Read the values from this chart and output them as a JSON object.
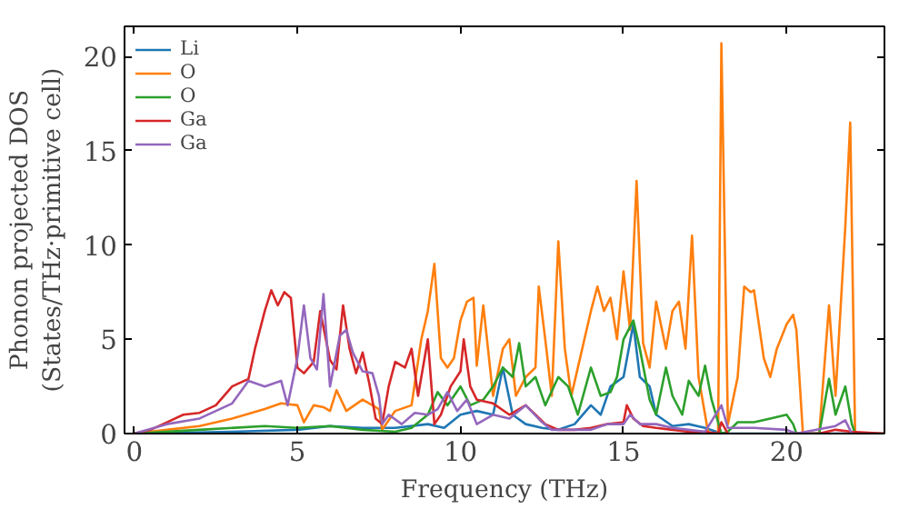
{
  "chart_data": {
    "type": "line",
    "xlabel": "Frequency (THz)",
    "ylabel": "Phonon projected DOS\n(States/THz·primitive cell)",
    "xlim": [
      -0.3,
      23
    ],
    "ylim": [
      0,
      21.6
    ],
    "xticks": [
      0,
      5,
      10,
      15,
      20
    ],
    "yticks": [
      0,
      5,
      10,
      15,
      20
    ],
    "legend": "top left",
    "grid": false,
    "series": [
      {
        "name": "Li",
        "color": "#1f77b4",
        "x": [
          0,
          3,
          5,
          6,
          7,
          8,
          9,
          9.5,
          10,
          10.5,
          11,
          11.3,
          11.6,
          12,
          12.5,
          13,
          13.5,
          14,
          14.3,
          14.6,
          15,
          15.3,
          15.5,
          15.8,
          16,
          16.5,
          17,
          17.5,
          18,
          20,
          22
        ],
        "values": [
          0,
          0.1,
          0.2,
          0.4,
          0.3,
          0.3,
          0.5,
          0.3,
          1.0,
          1.2,
          1.0,
          3.5,
          1.0,
          0.5,
          0.3,
          0.2,
          0.5,
          1.5,
          1.0,
          2.5,
          3.0,
          5.8,
          3.0,
          2.5,
          1.0,
          0.4,
          0.5,
          0.3,
          0,
          0,
          0
        ]
      },
      {
        "name": "O",
        "color": "#ff7f0e",
        "x": [
          0,
          1,
          2,
          3,
          4,
          4.5,
          5,
          5.2,
          5.5,
          5.8,
          6,
          6.2,
          6.5,
          7,
          7.5,
          7.6,
          8,
          8.5,
          8.8,
          9,
          9.2,
          9.4,
          9.6,
          9.8,
          10,
          10.2,
          10.4,
          10.5,
          10.7,
          11,
          11.3,
          11.5,
          11.7,
          12,
          12.3,
          12.4,
          12.6,
          12.8,
          13,
          13.2,
          13.4,
          13.6,
          14,
          14.2,
          14.4,
          14.6,
          14.8,
          15,
          15.2,
          15.4,
          15.6,
          15.8,
          16,
          16.3,
          16.5,
          16.7,
          16.9,
          17.1,
          17.3,
          17.6,
          17.9,
          18,
          18.2,
          18.5,
          18.7,
          18.9,
          19,
          19.3,
          19.5,
          19.7,
          20,
          20.2,
          20.3,
          20.5,
          21,
          21.3,
          21.5,
          21.8,
          21.95,
          22.1,
          23
        ],
        "values": [
          0,
          0.2,
          0.4,
          0.8,
          1.3,
          1.6,
          1.5,
          0.6,
          1.5,
          1.4,
          1.2,
          2.3,
          1.2,
          1.8,
          1.3,
          0.2,
          1.2,
          1.5,
          5.0,
          6.5,
          9.0,
          4.0,
          3.5,
          4.0,
          6.0,
          7.0,
          7.2,
          3.6,
          6.8,
          2.0,
          4.5,
          5.0,
          2.0,
          3.0,
          3.5,
          7.8,
          5.0,
          2.0,
          10.2,
          4.5,
          2.0,
          3.5,
          6.5,
          7.8,
          6.5,
          7.2,
          5.0,
          8.6,
          5.5,
          13.4,
          4.8,
          3.5,
          7.0,
          4.5,
          6.5,
          7.0,
          4.5,
          10.5,
          3.0,
          0,
          0,
          20.7,
          0.5,
          3.0,
          7.8,
          7.5,
          7.6,
          4.0,
          3.0,
          4.5,
          5.8,
          6.3,
          5.5,
          0,
          0,
          6.8,
          2.0,
          11,
          16.5,
          0,
          0
        ]
      },
      {
        "name": "O",
        "color": "#2ca02c",
        "x": [
          0,
          2,
          4,
          5,
          6,
          7,
          8,
          8.5,
          9,
          9.3,
          9.6,
          10,
          10.3,
          10.7,
          11,
          11.3,
          11.6,
          11.8,
          12,
          12.3,
          12.6,
          13,
          13.3,
          13.6,
          14,
          14.3,
          14.6,
          14.8,
          15,
          15.3,
          15.5,
          15.8,
          16,
          16.3,
          16.5,
          16.8,
          17,
          17.3,
          17.5,
          17.7,
          18,
          18.2,
          18.5,
          19,
          19.5,
          20,
          20.2,
          20.3,
          21,
          21.3,
          21.5,
          21.8,
          22,
          22.1,
          23
        ],
        "values": [
          0,
          0.2,
          0.4,
          0.3,
          0.4,
          0.2,
          0.1,
          0.3,
          1.0,
          2.2,
          1.5,
          2.5,
          1.5,
          1.8,
          2.5,
          3.5,
          3.0,
          4.8,
          2.5,
          3.0,
          1.5,
          3.0,
          2.5,
          1.0,
          3.5,
          2.0,
          2.2,
          3.0,
          5.0,
          6.0,
          4.5,
          1.8,
          1.0,
          3.5,
          2.0,
          1.0,
          2.8,
          2.0,
          3.6,
          1.8,
          0,
          0.1,
          0.6,
          0.6,
          0.8,
          1.0,
          0.5,
          0,
          0,
          2.9,
          1.0,
          2.5,
          0.5,
          0,
          0
        ]
      },
      {
        "name": "Ga",
        "color": "#d62728",
        "x": [
          0,
          0.5,
          1,
          1.5,
          2,
          2.5,
          3,
          3.5,
          3.7,
          4,
          4.2,
          4.4,
          4.6,
          4.8,
          5,
          5.2,
          5.5,
          5.7,
          6,
          6.2,
          6.4,
          6.6,
          6.8,
          7,
          7.2,
          7.4,
          7.6,
          7.8,
          8,
          8.3,
          8.5,
          8.7,
          9,
          9.2,
          9.4,
          9.7,
          10,
          10.1,
          10.3,
          10.5,
          11,
          11.5,
          12,
          12.3,
          12.6,
          13,
          13.5,
          14,
          14.5,
          15,
          15.1,
          15.3,
          15.6,
          16,
          16.5,
          17,
          17.5,
          17.9,
          18,
          18.2,
          19,
          20,
          21,
          21.5,
          22,
          23
        ],
        "values": [
          0,
          0.2,
          0.6,
          1.0,
          1.1,
          1.5,
          2.5,
          2.9,
          4.5,
          6.5,
          7.6,
          6.8,
          7.5,
          7.2,
          3.5,
          3.2,
          3.8,
          6.5,
          3.9,
          3.4,
          6.8,
          4.5,
          3.2,
          4.3,
          2.7,
          0.8,
          0.5,
          2.5,
          3.8,
          3.5,
          4.5,
          2.0,
          5.0,
          0.5,
          1.0,
          2.5,
          3.3,
          5.0,
          2.5,
          1.8,
          1.6,
          1.0,
          1.5,
          1.0,
          0.5,
          0.2,
          0.2,
          0.3,
          0.5,
          0.6,
          1.5,
          0.8,
          0.4,
          0.3,
          0.2,
          0.1,
          0.1,
          0,
          0.6,
          0,
          null,
          0,
          0,
          0.2,
          0.1,
          0
        ]
      },
      {
        "name": "Ga",
        "color": "#9467bd",
        "x": [
          0,
          1,
          2,
          3,
          3.5,
          4,
          4.5,
          4.7,
          5,
          5.2,
          5.4,
          5.6,
          5.8,
          6,
          6.3,
          6.5,
          6.7,
          7,
          7.3,
          7.5,
          7.6,
          7.8,
          8.2,
          8.6,
          9,
          9.3,
          9.6,
          9.9,
          10.2,
          10.5,
          11,
          11.5,
          12,
          12.5,
          12.8,
          13.2,
          13.6,
          14,
          14.5,
          15,
          15.2,
          15.5,
          16,
          16.5,
          17,
          17.5,
          18,
          18.2,
          19,
          20,
          20.3,
          21.5,
          21.8,
          22
        ],
        "values": [
          0,
          0.5,
          0.8,
          1.6,
          2.8,
          2.5,
          2.8,
          1.5,
          4.0,
          6.8,
          4.0,
          3.4,
          7.4,
          2.5,
          5.2,
          5.5,
          4.3,
          3.3,
          3.2,
          2.0,
          0.5,
          1.0,
          0.5,
          1.1,
          1.0,
          1.3,
          2.2,
          1.2,
          1.8,
          0.5,
          1.0,
          0.8,
          1.5,
          0.6,
          0.2,
          0.2,
          0.2,
          0.2,
          0.5,
          0.5,
          1.0,
          0.5,
          0.5,
          0.3,
          0.2,
          0.1,
          1.5,
          0.3,
          0.3,
          0.2,
          0,
          0.4,
          0.7,
          0
        ]
      }
    ]
  }
}
